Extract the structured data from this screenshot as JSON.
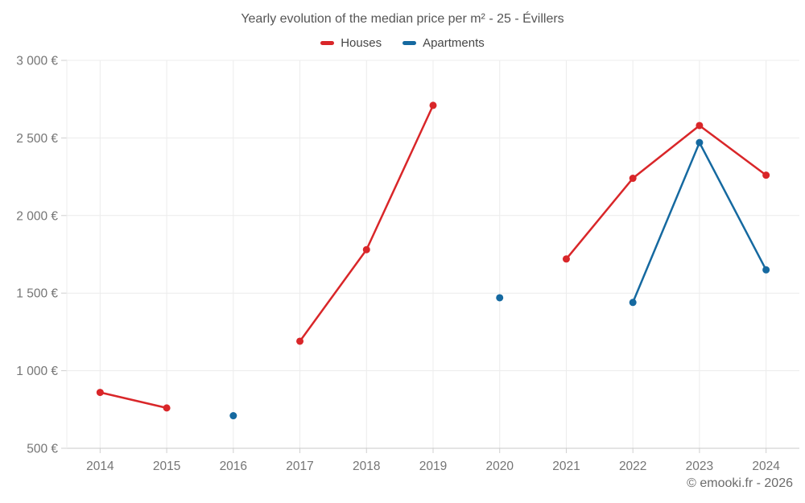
{
  "header": {
    "title": "Yearly evolution of the median price per m² - 25 - Évillers"
  },
  "legend": [
    {
      "label": "Houses",
      "color": "#d92629"
    },
    {
      "label": "Apartments",
      "color": "#1569a0"
    }
  ],
  "footer": {
    "copyright": "© emooki.fr - 2026"
  },
  "colors": {
    "houses": "#d92629",
    "apartments": "#1569a0",
    "grid": "#ececec",
    "axis": "#c9c9c9",
    "tick": "#cfcfcf",
    "axis_text": "#757575"
  },
  "chart_data": {
    "type": "line",
    "title": "Yearly evolution of the median price per m² - 25 - Évillers",
    "xlabel": "",
    "ylabel": "",
    "categories": [
      "2014",
      "2015",
      "2016",
      "2017",
      "2018",
      "2019",
      "2020",
      "2021",
      "2022",
      "2023",
      "2024"
    ],
    "series": [
      {
        "name": "Houses",
        "color": "#d92629",
        "values": [
          860,
          760,
          null,
          1190,
          1780,
          2710,
          null,
          1720,
          2240,
          2580,
          2260
        ]
      },
      {
        "name": "Apartments",
        "color": "#1569a0",
        "values": [
          null,
          null,
          710,
          null,
          null,
          null,
          1470,
          null,
          1440,
          2470,
          1650
        ]
      }
    ],
    "ylim": [
      500,
      3000
    ],
    "y_tick_step": 500,
    "y_tick_labels": [
      "500 €",
      "1 000 €",
      "1 500 €",
      "2 000 €",
      "2 500 €",
      "3 000 €"
    ],
    "grid": true,
    "legend_position": "top",
    "marker_radius": 4.5,
    "line_width": 2.5
  }
}
